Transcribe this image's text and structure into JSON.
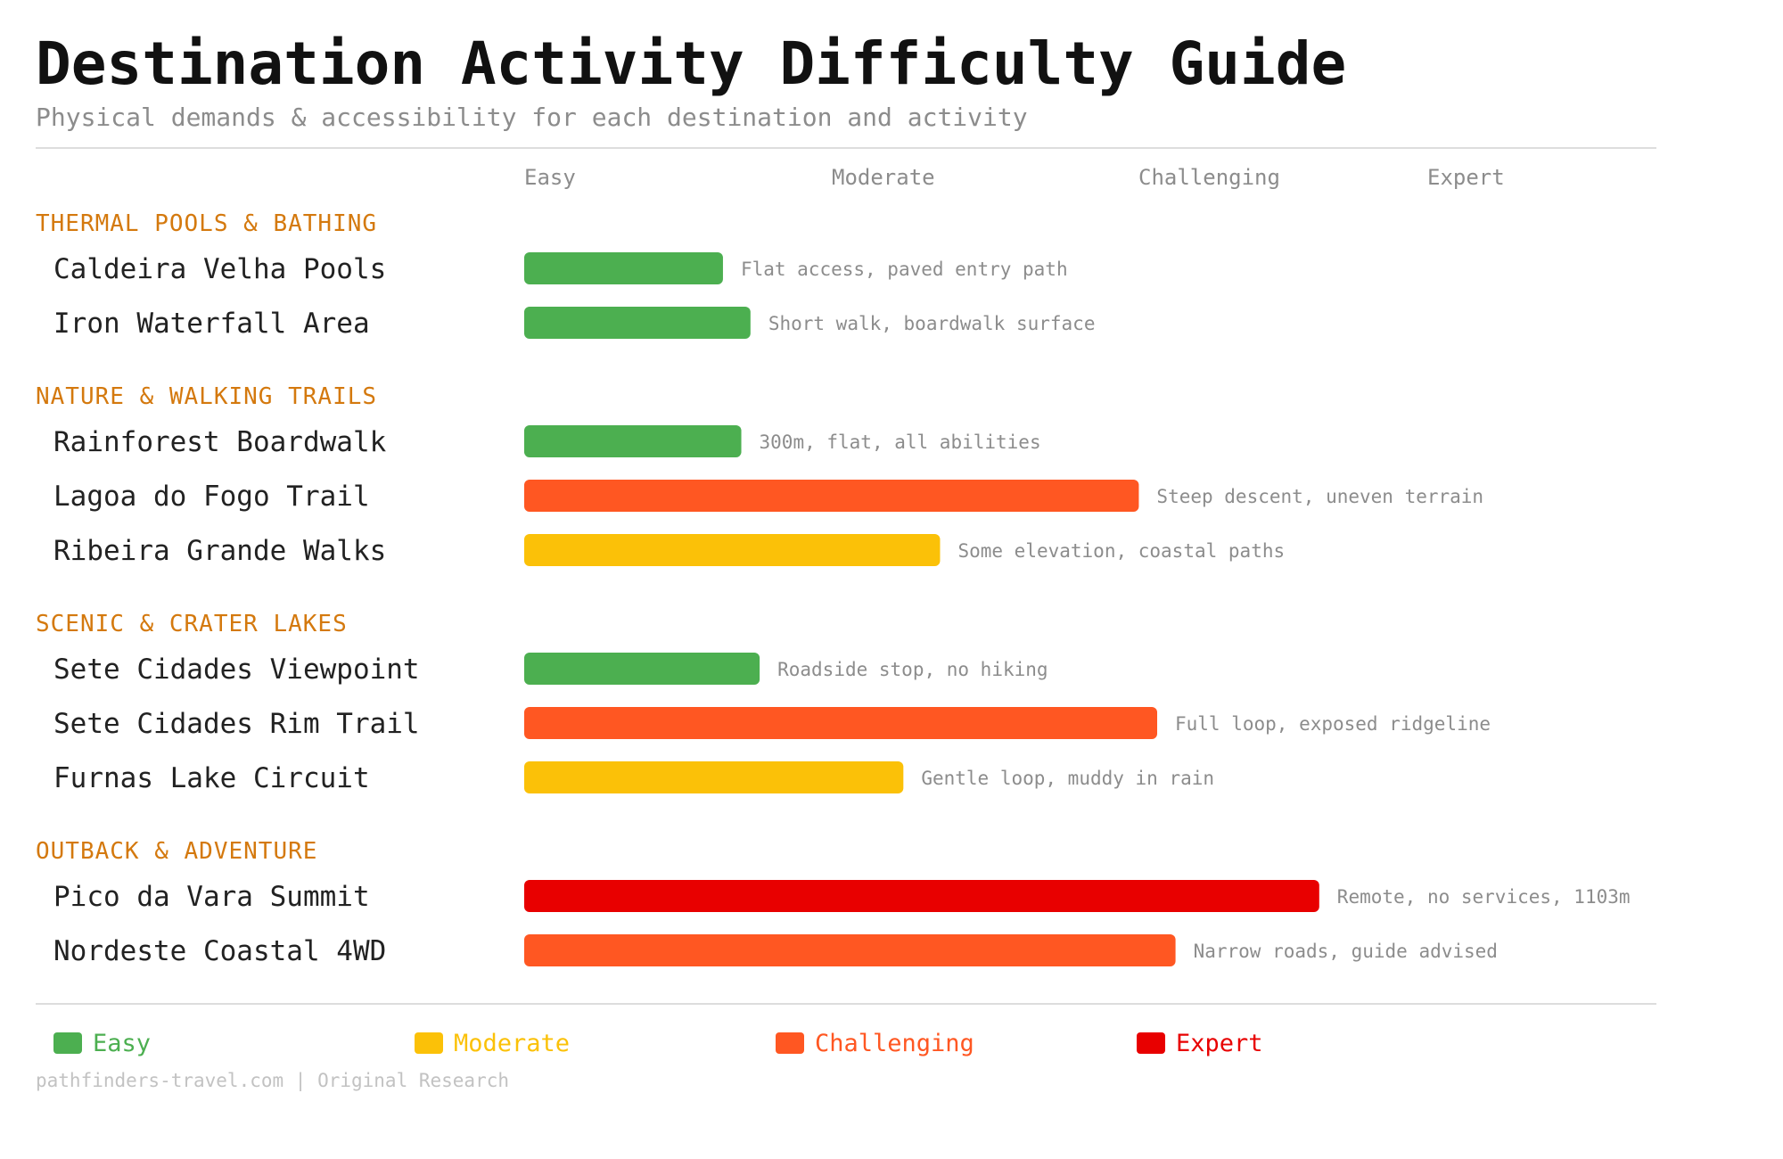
{
  "chart_data": {
    "type": "bar",
    "orientation": "horizontal",
    "title": "Destination Activity Difficulty Guide",
    "subtitle": "Physical demands & accessibility for each destination and activity",
    "levels": [
      "Easy",
      "Moderate",
      "Challenging",
      "Expert"
    ],
    "xlim": [
      0,
      4
    ],
    "groups": [
      {
        "name": "THERMAL POOLS & BATHING",
        "items": [
          {
            "label": "Caldeira Velha Pools",
            "value": 0.65,
            "level": "Easy",
            "note": "Flat access, paved entry path"
          },
          {
            "label": "Iron Waterfall Area",
            "value": 0.74,
            "level": "Easy",
            "note": "Short walk, boardwalk surface"
          }
        ]
      },
      {
        "name": "NATURE & WALKING TRAILS",
        "items": [
          {
            "label": "Rainforest Boardwalk",
            "value": 0.71,
            "level": "Easy",
            "note": "300m, flat, all abilities"
          },
          {
            "label": "Lagoa do Fogo Trail",
            "value": 2.01,
            "level": "Challenging",
            "note": "Steep descent, uneven terrain"
          },
          {
            "label": "Ribeira Grande Walks",
            "value": 1.36,
            "level": "Moderate",
            "note": "Some elevation, coastal paths"
          }
        ]
      },
      {
        "name": "SCENIC & CRATER LAKES",
        "items": [
          {
            "label": "Sete Cidades Viewpoint",
            "value": 0.77,
            "level": "Easy",
            "note": "Roadside stop, no hiking"
          },
          {
            "label": "Sete Cidades Rim Trail",
            "value": 2.07,
            "level": "Challenging",
            "note": "Full loop, exposed ridgeline"
          },
          {
            "label": "Furnas Lake Circuit",
            "value": 1.24,
            "level": "Moderate",
            "note": "Gentle loop, muddy in rain"
          }
        ]
      },
      {
        "name": "OUTBACK & ADVENTURE",
        "items": [
          {
            "label": "Pico da Vara Summit",
            "value": 2.6,
            "level": "Expert",
            "note": "Remote, no services, 1103m"
          },
          {
            "label": "Nordeste Coastal 4WD",
            "value": 2.13,
            "level": "Challenging",
            "note": "Narrow roads, guide advised"
          }
        ]
      }
    ],
    "colors": {
      "Easy": "#4caf50",
      "Moderate": "#fbc108",
      "Challenging": "#ff5722",
      "Expert": "#e80000"
    },
    "legend": {
      "position": "bottom",
      "entries": [
        "Easy",
        "Moderate",
        "Challenging",
        "Expert"
      ]
    },
    "footer": "pathfinders-travel.com | Original Research"
  }
}
